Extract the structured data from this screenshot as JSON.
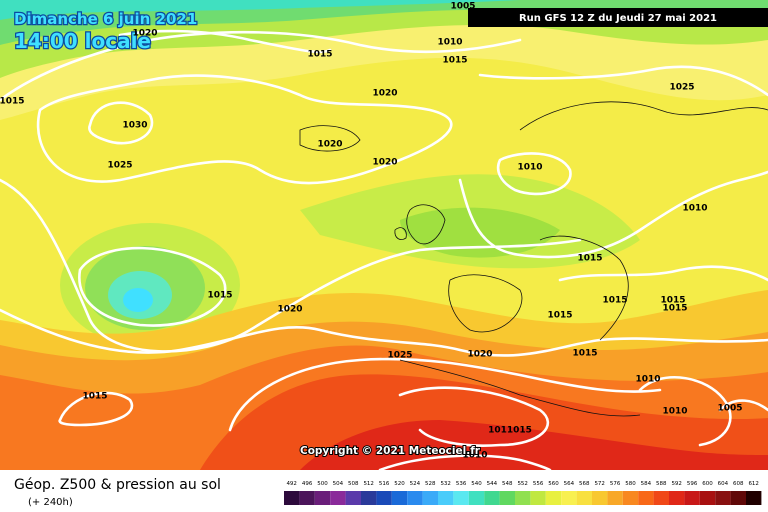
{
  "header": {
    "date": "Dimanche 6 juin 2021",
    "time": "14:00 locale",
    "run": "Run GFS 12 Z du Jeudi 27 mai 2021"
  },
  "copyright": "Copyright © 2021 Meteociel.fr",
  "footer": {
    "title": "Géop. Z500 & pression au sol",
    "lead": "(+ 240h)"
  },
  "isobar_labels": [
    "1020",
    "1005",
    "1010",
    "1015",
    "1015",
    "1015",
    "1030",
    "1020",
    "1025",
    "1020",
    "1020",
    "1025",
    "1010",
    "1010",
    "1015",
    "1015",
    "1020",
    "1015",
    "1015",
    "1015",
    "1015",
    "1025",
    "1020",
    "1015",
    "1010",
    "1015",
    "1010",
    "1005",
    "1011015",
    "1010"
  ],
  "scale": {
    "values": [
      492,
      496,
      500,
      504,
      508,
      512,
      516,
      520,
      524,
      528,
      532,
      536,
      540,
      544,
      548,
      552,
      556,
      560,
      564,
      568,
      572,
      576,
      580,
      584,
      588,
      592,
      596,
      600,
      604,
      608,
      612
    ],
    "colors": [
      "#2d0a3c",
      "#4b145a",
      "#6a1e7a",
      "#8a2a9a",
      "#5a3aaa",
      "#2a3a9a",
      "#1a4ab8",
      "#1a6ad8",
      "#2a8aee",
      "#3aaaf8",
      "#4accfa",
      "#5ae8f0",
      "#40e0c0",
      "#40d890",
      "#60d860",
      "#90e050",
      "#c0e840",
      "#e8f040",
      "#f8f050",
      "#f8e040",
      "#f8c830",
      "#f8a828",
      "#f88820",
      "#f86818",
      "#f04818",
      "#e02818",
      "#c81818",
      "#a81010",
      "#881010",
      "#600808",
      "#200000"
    ]
  }
}
